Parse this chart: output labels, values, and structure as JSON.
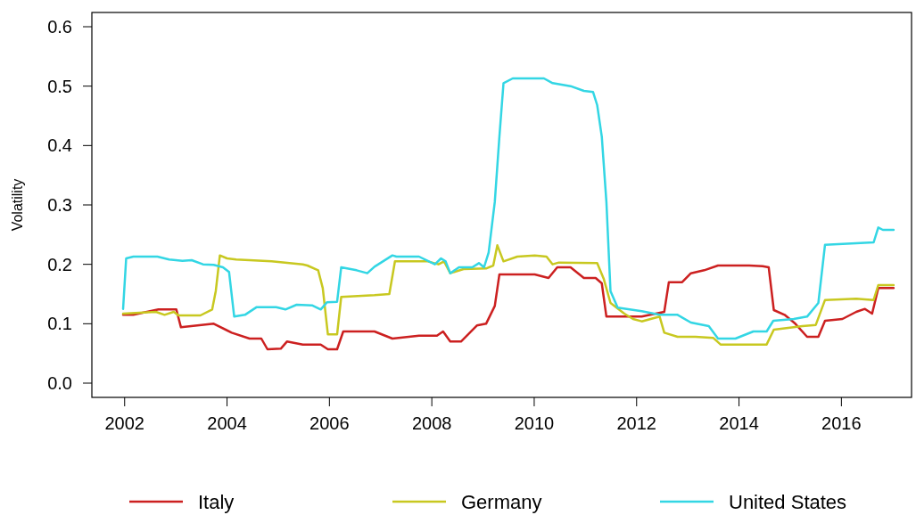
{
  "chart_data": {
    "type": "line",
    "ylabel": "Volatility",
    "xlim": [
      2001.36,
      2017.37
    ],
    "ylim": [
      -0.024,
      0.624
    ],
    "xticks": [
      2002,
      2004,
      2006,
      2008,
      2010,
      2012,
      2014,
      2016
    ],
    "yticks": [
      {
        "value": 0,
        "label": "0.0"
      },
      {
        "value": 0.1,
        "label": "0.1"
      },
      {
        "value": 0.2,
        "label": "0.2"
      },
      {
        "value": 0.3,
        "label": "0.3"
      },
      {
        "value": 0.4,
        "label": "0.4"
      },
      {
        "value": 0.5,
        "label": "0.5"
      },
      {
        "value": 0.6,
        "label": "0.6"
      }
    ],
    "grid": false,
    "legend": "bottom",
    "marker": "none",
    "line_style": "solid",
    "series": [
      {
        "name": "Italy",
        "color": "#cc2020",
        "x": [
          2001.97,
          2002.17,
          2002.66,
          2003.01,
          2003.1,
          2003.74,
          2004.09,
          2004.44,
          2004.67,
          2004.79,
          2005.05,
          2005.17,
          2005.48,
          2005.83,
          2005.97,
          2006.15,
          2006.27,
          2006.88,
          2007.23,
          2007.75,
          2008.1,
          2008.22,
          2008.36,
          2008.57,
          2008.88,
          2009.06,
          2009.23,
          2009.32,
          2010.01,
          2010.28,
          2010.45,
          2010.71,
          2010.97,
          2011.2,
          2011.32,
          2011.41,
          2012.1,
          2012.54,
          2012.63,
          2012.89,
          2013.06,
          2013.32,
          2013.59,
          2014.2,
          2014.46,
          2014.58,
          2014.68,
          2014.89,
          2015.1,
          2015.33,
          2015.55,
          2015.68,
          2016.02,
          2016.29,
          2016.46,
          2016.6,
          2016.72,
          2017.02
        ],
        "values": [
          0.115,
          0.115,
          0.124,
          0.124,
          0.094,
          0.1,
          0.085,
          0.075,
          0.075,
          0.057,
          0.058,
          0.07,
          0.065,
          0.065,
          0.057,
          0.057,
          0.087,
          0.087,
          0.075,
          0.08,
          0.08,
          0.087,
          0.07,
          0.07,
          0.097,
          0.1,
          0.13,
          0.183,
          0.183,
          0.177,
          0.195,
          0.195,
          0.177,
          0.177,
          0.168,
          0.112,
          0.112,
          0.12,
          0.17,
          0.17,
          0.185,
          0.19,
          0.198,
          0.198,
          0.197,
          0.195,
          0.123,
          0.115,
          0.1,
          0.078,
          0.078,
          0.105,
          0.108,
          0.12,
          0.125,
          0.117,
          0.16,
          0.16
        ]
      },
      {
        "name": "Germany",
        "color": "#c8c820",
        "x": [
          2001.97,
          2002.61,
          2002.78,
          2002.96,
          2003.05,
          2003.48,
          2003.71,
          2003.78,
          2003.86,
          2004.0,
          2004.18,
          2004.87,
          2005.48,
          2005.57,
          2005.78,
          2005.87,
          2005.97,
          2006.15,
          2006.23,
          2006.88,
          2007.17,
          2007.28,
          2007.92,
          2008.13,
          2008.24,
          2008.36,
          2008.62,
          2009.06,
          2009.2,
          2009.28,
          2009.4,
          2009.67,
          2010.01,
          2010.24,
          2010.36,
          2010.48,
          2011.23,
          2011.36,
          2011.49,
          2011.76,
          2011.93,
          2012.1,
          2012.45,
          2012.54,
          2012.8,
          2013.15,
          2013.5,
          2013.64,
          2014.54,
          2014.68,
          2015.24,
          2015.5,
          2015.68,
          2016.29,
          2016.63,
          2016.72,
          2017.02
        ],
        "values": [
          0.117,
          0.12,
          0.115,
          0.12,
          0.114,
          0.114,
          0.124,
          0.155,
          0.215,
          0.21,
          0.208,
          0.205,
          0.2,
          0.198,
          0.19,
          0.16,
          0.082,
          0.082,
          0.145,
          0.148,
          0.15,
          0.205,
          0.205,
          0.2,
          0.205,
          0.185,
          0.192,
          0.193,
          0.198,
          0.232,
          0.205,
          0.213,
          0.215,
          0.213,
          0.2,
          0.203,
          0.202,
          0.175,
          0.135,
          0.117,
          0.108,
          0.104,
          0.112,
          0.085,
          0.078,
          0.078,
          0.076,
          0.065,
          0.065,
          0.09,
          0.096,
          0.098,
          0.14,
          0.142,
          0.14,
          0.165,
          0.165
        ]
      },
      {
        "name": "United States",
        "color": "#33d6e4",
        "x": [
          2001.97,
          2002.03,
          2002.17,
          2002.64,
          2002.87,
          2003.13,
          2003.31,
          2003.53,
          2003.74,
          2003.92,
          2004.04,
          2004.14,
          2004.35,
          2004.58,
          2004.96,
          2005.14,
          2005.36,
          2005.66,
          2005.83,
          2005.95,
          2006.15,
          2006.23,
          2006.53,
          2006.74,
          2006.88,
          2007.23,
          2007.31,
          2007.75,
          2008.06,
          2008.18,
          2008.27,
          2008.36,
          2008.53,
          2008.79,
          2008.92,
          2009.02,
          2009.11,
          2009.23,
          2009.32,
          2009.4,
          2009.58,
          2010.19,
          2010.36,
          2010.71,
          2010.97,
          2011.15,
          2011.23,
          2011.32,
          2011.41,
          2011.49,
          2011.63,
          2012.1,
          2012.45,
          2012.8,
          2013.06,
          2013.41,
          2013.59,
          2013.93,
          2014.28,
          2014.54,
          2014.67,
          2015.07,
          2015.33,
          2015.55,
          2015.68,
          2016.2,
          2016.63,
          2016.72,
          2016.81,
          2017.02
        ],
        "values": [
          0.125,
          0.21,
          0.213,
          0.213,
          0.208,
          0.206,
          0.207,
          0.2,
          0.199,
          0.195,
          0.187,
          0.112,
          0.115,
          0.128,
          0.128,
          0.124,
          0.132,
          0.131,
          0.124,
          0.136,
          0.137,
          0.195,
          0.19,
          0.185,
          0.196,
          0.215,
          0.213,
          0.213,
          0.2,
          0.21,
          0.205,
          0.185,
          0.195,
          0.195,
          0.202,
          0.195,
          0.22,
          0.305,
          0.415,
          0.505,
          0.513,
          0.513,
          0.505,
          0.5,
          0.492,
          0.49,
          0.468,
          0.415,
          0.305,
          0.155,
          0.127,
          0.121,
          0.115,
          0.115,
          0.102,
          0.096,
          0.075,
          0.075,
          0.087,
          0.087,
          0.105,
          0.108,
          0.112,
          0.135,
          0.233,
          0.235,
          0.237,
          0.262,
          0.258,
          0.258
        ]
      }
    ]
  }
}
